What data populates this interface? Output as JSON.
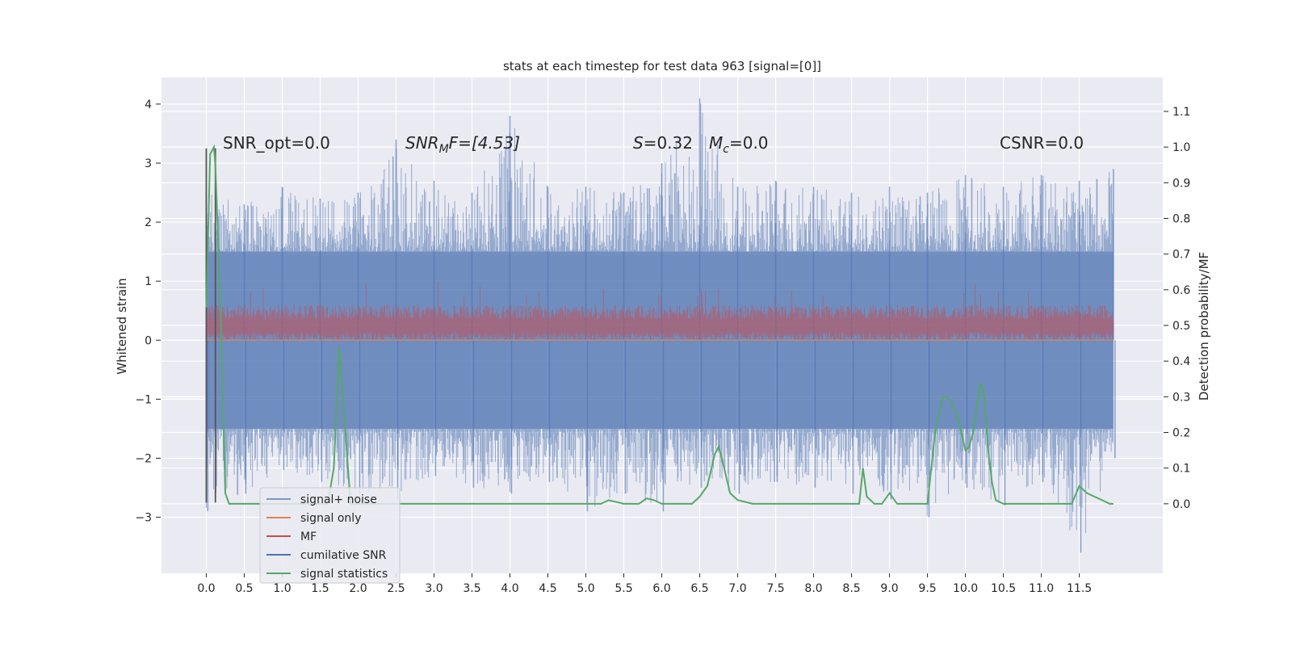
{
  "chart_data": {
    "type": "line",
    "title": "stats at each timestep for test data 963 [signal=[0]]",
    "xlabel": "",
    "ylabel": "Whitened strain",
    "ylabel_right": "Detection probability/MF",
    "xlim": [
      -0.59,
      12.6
    ],
    "ylim": [
      -3.95,
      4.45
    ],
    "ylim_right": [
      -0.195,
      1.195
    ],
    "x_ticks": [
      "0.0",
      "0.5",
      "1.0",
      "1.5",
      "2.0",
      "2.5",
      "3.0",
      "3.5",
      "4.0",
      "4.5",
      "5.0",
      "5.5",
      "6.0",
      "6.5",
      "7.0",
      "7.5",
      "8.0",
      "8.5",
      "9.0",
      "9.5",
      "10.0",
      "10.5",
      "11.0",
      "11.5"
    ],
    "y_ticks": [
      "4",
      "3",
      "2",
      "1",
      "0",
      "−1",
      "−2",
      "−3"
    ],
    "y_right_ticks": [
      "1.1",
      "1.0",
      "0.9",
      "0.8",
      "0.7",
      "0.6",
      "0.5",
      "0.4",
      "0.3",
      "0.2",
      "0.1",
      "0.0"
    ],
    "grid": true,
    "legend_position": "lower-left",
    "annotations": {
      "snr_opt": "SNR_opt=0.0",
      "snr_mf_main": "SNR",
      "snr_mf_sub": "M",
      "snr_mf_rest": "F=[4.53]",
      "s_label": "S",
      "s_value": "=0.32",
      "mc_label": "M",
      "mc_sub": "c",
      "mc_value": "=0.0",
      "csnr": "CSNR=0.0"
    },
    "noise_envelope": {
      "x": [
        0.0,
        0.5,
        1.0,
        1.5,
        2.0,
        2.5,
        3.0,
        3.5,
        4.0,
        4.5,
        5.0,
        5.5,
        6.0,
        6.5,
        7.0,
        7.5,
        8.0,
        8.5,
        9.0,
        9.5,
        10.0,
        10.5,
        11.0,
        11.5,
        11.95
      ],
      "upper": [
        2.5,
        2.3,
        2.6,
        2.4,
        2.5,
        3.4,
        2.7,
        2.5,
        3.8,
        2.6,
        2.6,
        2.5,
        3.0,
        4.1,
        2.6,
        2.7,
        2.6,
        2.5,
        2.6,
        2.5,
        2.8,
        2.6,
        2.8,
        2.7,
        2.9
      ],
      "lower": [
        -2.9,
        -2.6,
        -2.2,
        -2.4,
        -2.6,
        -2.7,
        -2.3,
        -2.5,
        -2.6,
        -2.4,
        -2.9,
        -2.6,
        -2.9,
        -2.5,
        -2.6,
        -2.4,
        -2.5,
        -2.6,
        -2.7,
        -3.0,
        -2.5,
        -2.8,
        -2.4,
        -3.6,
        -2.0
      ]
    },
    "series": [
      {
        "name": "signal+ noise",
        "color": "#4c72b0",
        "band": [
          -1.5,
          1.5
        ]
      },
      {
        "name": "signal only",
        "color": "#dd8452",
        "values": 0
      },
      {
        "name": "MF",
        "color": "#c44e52",
        "band": [
          0.0,
          0.6
        ]
      },
      {
        "name": "cumilative SNR",
        "color": "#4c72b0"
      },
      {
        "name": "signal statistics",
        "color": "#55a868",
        "axis": "right",
        "x": [
          0.0,
          0.05,
          0.1,
          0.12,
          0.18,
          0.25,
          0.3,
          0.5,
          1.0,
          1.5,
          1.6,
          1.68,
          1.75,
          1.8,
          1.9,
          2.0,
          3.0,
          4.0,
          4.5,
          5.0,
          5.2,
          5.3,
          5.5,
          5.7,
          5.8,
          5.9,
          6.0,
          6.2,
          6.3,
          6.4,
          6.5,
          6.6,
          6.7,
          6.75,
          6.8,
          6.9,
          7.0,
          7.2,
          7.5,
          8.0,
          8.5,
          8.6,
          8.65,
          8.7,
          8.8,
          8.9,
          9.0,
          9.1,
          9.3,
          9.5,
          9.6,
          9.7,
          9.75,
          9.8,
          9.9,
          10.0,
          10.05,
          10.1,
          10.2,
          10.25,
          10.3,
          10.35,
          10.4,
          10.5,
          11.0,
          11.2,
          11.4,
          11.5,
          11.6,
          11.7,
          11.8,
          11.9,
          11.95
        ],
        "y": [
          0.55,
          0.98,
          1.0,
          0.95,
          0.6,
          0.03,
          0.0,
          0.0,
          0.0,
          0.0,
          0.0,
          0.1,
          0.44,
          0.3,
          0.0,
          0.0,
          0.0,
          0.0,
          0.0,
          0.0,
          0.0,
          0.01,
          0.0,
          0.0,
          0.015,
          0.01,
          0.0,
          0.0,
          0.0,
          0.0,
          0.02,
          0.05,
          0.14,
          0.16,
          0.12,
          0.03,
          0.01,
          0.0,
          0.0,
          0.0,
          0.0,
          0.0,
          0.1,
          0.02,
          0.0,
          0.0,
          0.03,
          0.0,
          0.0,
          0.0,
          0.2,
          0.3,
          0.3,
          0.29,
          0.24,
          0.15,
          0.16,
          0.2,
          0.34,
          0.3,
          0.15,
          0.06,
          0.01,
          0.0,
          0.0,
          0.0,
          0.0,
          0.05,
          0.03,
          0.02,
          0.01,
          0.0,
          0.0
        ]
      }
    ]
  }
}
